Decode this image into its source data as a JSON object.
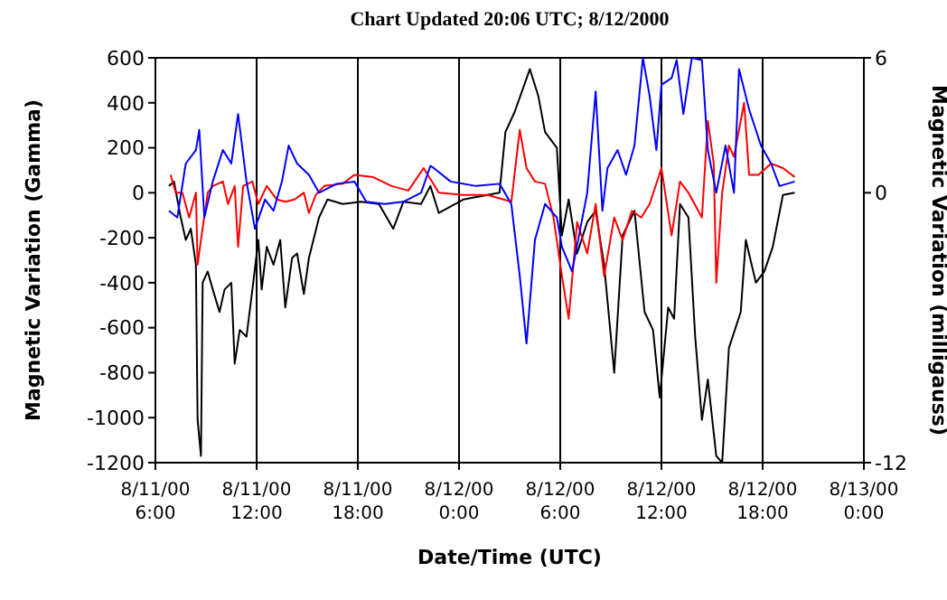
{
  "chart_data": {
    "type": "line",
    "title": "Chart Updated  20:06 UTC;  8/12/2000",
    "xlabel": "Date/Time (UTC)",
    "ylabel": "Magnetic Variation (Gamma)",
    "y2label": "Magnetic Variation (milligauss)",
    "xlim": [
      "2000-08-11T06:00",
      "2000-08-13T00:00"
    ],
    "xticks": [
      {
        "value": "2000-08-11T06:00",
        "label": "8/11/00\n6:00"
      },
      {
        "value": "2000-08-11T12:00",
        "label": "8/11/00\n12:00"
      },
      {
        "value": "2000-08-11T18:00",
        "label": "8/11/00\n18:00"
      },
      {
        "value": "2000-08-12T00:00",
        "label": "8/12/00\n0:00"
      },
      {
        "value": "2000-08-12T06:00",
        "label": "8/12/00\n6:00"
      },
      {
        "value": "2000-08-12T12:00",
        "label": "8/12/00\n12:00"
      },
      {
        "value": "2000-08-12T18:00",
        "label": "8/12/00\n18:00"
      },
      {
        "value": "2000-08-13T00:00",
        "label": "8/13/00\n0:00"
      }
    ],
    "ylim": [
      -1200,
      600
    ],
    "yticks": [
      -1200,
      -1000,
      -800,
      -600,
      -400,
      -200,
      0,
      200,
      400,
      600
    ],
    "y2lim": [
      -12,
      6
    ],
    "y2ticks": [
      -12,
      0,
      6
    ],
    "grid": true,
    "marker": "none",
    "line_style": "solid",
    "series": [
      {
        "color": "#000000",
        "x": [
          "2000-08-11T06:48",
          "2000-08-11T07:06",
          "2000-08-11T07:30",
          "2000-08-11T07:48",
          "2000-08-11T08:06",
          "2000-08-11T08:24",
          "2000-08-11T08:30",
          "2000-08-11T08:42",
          "2000-08-11T08:48",
          "2000-08-11T09:06",
          "2000-08-11T09:24",
          "2000-08-11T09:48",
          "2000-08-11T10:06",
          "2000-08-11T10:30",
          "2000-08-11T10:42",
          "2000-08-11T11:00",
          "2000-08-11T11:24",
          "2000-08-11T11:45",
          "2000-08-11T12:06",
          "2000-08-11T12:18",
          "2000-08-11T12:36",
          "2000-08-11T13:00",
          "2000-08-11T13:24",
          "2000-08-11T13:42",
          "2000-08-11T14:06",
          "2000-08-11T14:24",
          "2000-08-11T14:48",
          "2000-08-11T15:06",
          "2000-08-11T15:42",
          "2000-08-11T16:12",
          "2000-08-11T17:06",
          "2000-08-11T18:12",
          "2000-08-11T19:15",
          "2000-08-11T20:06",
          "2000-08-11T20:42",
          "2000-08-11T21:45",
          "2000-08-11T22:18",
          "2000-08-11T22:48",
          "2000-08-12T00:15",
          "2000-08-12T02:24",
          "2000-08-12T02:45",
          "2000-08-12T03:18",
          "2000-08-12T04:12",
          "2000-08-12T04:42",
          "2000-08-12T05:06",
          "2000-08-12T05:48",
          "2000-08-12T06:06",
          "2000-08-12T06:30",
          "2000-08-12T07:00",
          "2000-08-12T07:36",
          "2000-08-12T08:06",
          "2000-08-12T08:36",
          "2000-08-12T09:12",
          "2000-08-12T09:42",
          "2000-08-12T10:24",
          "2000-08-12T11:00",
          "2000-08-12T11:30",
          "2000-08-12T11:54",
          "2000-08-12T12:24",
          "2000-08-12T12:45",
          "2000-08-12T13:06",
          "2000-08-12T13:36",
          "2000-08-12T14:00",
          "2000-08-12T14:24",
          "2000-08-12T14:45",
          "2000-08-12T15:15",
          "2000-08-12T15:36",
          "2000-08-12T16:00",
          "2000-08-12T16:42",
          "2000-08-12T17:00",
          "2000-08-12T17:36",
          "2000-08-12T18:06",
          "2000-08-12T18:36",
          "2000-08-12T19:12",
          "2000-08-12T19:54"
        ],
        "values": [
          30,
          50,
          -110,
          -210,
          -160,
          -320,
          -1010,
          -1170,
          -400,
          -350,
          -430,
          -530,
          -430,
          -400,
          -760,
          -610,
          -640,
          -430,
          -210,
          -430,
          -240,
          -320,
          -210,
          -510,
          -290,
          -270,
          -450,
          -290,
          -110,
          -30,
          -50,
          -40,
          -50,
          -160,
          -40,
          -50,
          30,
          -90,
          -30,
          0,
          270,
          360,
          550,
          430,
          270,
          200,
          -190,
          -30,
          -270,
          -130,
          -80,
          -320,
          -800,
          -190,
          -80,
          -530,
          -610,
          -910,
          -510,
          -560,
          -50,
          -110,
          -640,
          -1010,
          -830,
          -1170,
          -1200,
          -690,
          -530,
          -210,
          -400,
          -350,
          -240,
          -10,
          0
        ]
      },
      {
        "color": "#ff0000",
        "x": [
          "2000-08-11T06:54",
          "2000-08-11T07:12",
          "2000-08-11T07:36",
          "2000-08-11T08:00",
          "2000-08-11T08:24",
          "2000-08-11T08:30",
          "2000-08-11T08:42",
          "2000-08-11T09:06",
          "2000-08-11T09:24",
          "2000-08-11T10:00",
          "2000-08-11T10:18",
          "2000-08-11T10:42",
          "2000-08-11T10:54",
          "2000-08-11T11:12",
          "2000-08-11T11:45",
          "2000-08-11T12:06",
          "2000-08-11T12:36",
          "2000-08-11T13:12",
          "2000-08-11T13:42",
          "2000-08-11T14:15",
          "2000-08-11T14:48",
          "2000-08-11T15:06",
          "2000-08-11T15:30",
          "2000-08-11T16:00",
          "2000-08-11T17:06",
          "2000-08-11T17:48",
          "2000-08-11T18:54",
          "2000-08-11T20:00",
          "2000-08-11T21:00",
          "2000-08-11T21:54",
          "2000-08-11T22:48",
          "2000-08-12T00:15",
          "2000-08-12T01:42",
          "2000-08-12T03:06",
          "2000-08-12T03:36",
          "2000-08-12T04:00",
          "2000-08-12T04:30",
          "2000-08-12T05:06",
          "2000-08-12T05:36",
          "2000-08-12T06:06",
          "2000-08-12T06:30",
          "2000-08-12T07:00",
          "2000-08-12T07:36",
          "2000-08-12T08:06",
          "2000-08-12T08:36",
          "2000-08-12T09:12",
          "2000-08-12T09:42",
          "2000-08-12T10:15",
          "2000-08-12T10:48",
          "2000-08-12T11:18",
          "2000-08-12T12:00",
          "2000-08-12T12:36",
          "2000-08-12T13:06",
          "2000-08-12T13:36",
          "2000-08-12T14:24",
          "2000-08-12T14:45",
          "2000-08-12T15:06",
          "2000-08-12T15:15",
          "2000-08-12T15:36",
          "2000-08-12T16:00",
          "2000-08-12T16:18",
          "2000-08-12T16:54",
          "2000-08-12T17:12",
          "2000-08-12T17:45",
          "2000-08-12T18:30",
          "2000-08-12T19:12",
          "2000-08-12T19:54"
        ],
        "values": [
          80,
          0,
          0,
          -110,
          0,
          -320,
          -210,
          0,
          30,
          50,
          -50,
          30,
          -240,
          30,
          50,
          -50,
          30,
          -30,
          -40,
          -30,
          0,
          -90,
          -10,
          30,
          40,
          80,
          70,
          30,
          10,
          110,
          0,
          -10,
          -10,
          -40,
          280,
          110,
          50,
          40,
          -110,
          -370,
          -560,
          -130,
          -270,
          -50,
          -370,
          -110,
          -210,
          -80,
          -110,
          -50,
          110,
          -190,
          50,
          0,
          -110,
          320,
          130,
          -400,
          0,
          210,
          160,
          400,
          80,
          80,
          130,
          110,
          70
        ]
      },
      {
        "color": "#0000ff",
        "x": [
          "2000-08-11T06:48",
          "2000-08-11T07:18",
          "2000-08-11T07:48",
          "2000-08-11T08:24",
          "2000-08-11T08:36",
          "2000-08-11T08:54",
          "2000-08-11T09:24",
          "2000-08-11T10:00",
          "2000-08-11T10:30",
          "2000-08-11T10:54",
          "2000-08-11T11:24",
          "2000-08-11T11:54",
          "2000-08-11T12:30",
          "2000-08-11T13:00",
          "2000-08-11T13:30",
          "2000-08-11T13:54",
          "2000-08-11T14:24",
          "2000-08-11T15:06",
          "2000-08-11T15:42",
          "2000-08-11T16:45",
          "2000-08-11T17:48",
          "2000-08-11T18:30",
          "2000-08-11T19:36",
          "2000-08-11T20:42",
          "2000-08-11T21:45",
          "2000-08-11T22:18",
          "2000-08-11T22:30",
          "2000-08-11T23:30",
          "2000-08-12T01:00",
          "2000-08-12T02:24",
          "2000-08-12T03:06",
          "2000-08-12T03:36",
          "2000-08-12T04:00",
          "2000-08-12T04:30",
          "2000-08-12T05:06",
          "2000-08-12T05:48",
          "2000-08-12T06:06",
          "2000-08-12T06:42",
          "2000-08-12T07:36",
          "2000-08-12T08:06",
          "2000-08-12T08:30",
          "2000-08-12T08:48",
          "2000-08-12T09:24",
          "2000-08-12T09:54",
          "2000-08-12T10:24",
          "2000-08-12T10:54",
          "2000-08-12T11:18",
          "2000-08-12T11:42",
          "2000-08-12T12:00",
          "2000-08-12T12:36",
          "2000-08-12T12:54",
          "2000-08-12T13:18",
          "2000-08-12T13:48",
          "2000-08-12T14:24",
          "2000-08-12T14:45",
          "2000-08-12T15:15",
          "2000-08-12T15:48",
          "2000-08-12T16:18",
          "2000-08-12T16:36",
          "2000-08-12T17:12",
          "2000-08-12T17:54",
          "2000-08-12T18:30",
          "2000-08-12T19:00",
          "2000-08-12T19:54"
        ],
        "values": [
          -80,
          -110,
          130,
          190,
          280,
          -110,
          50,
          190,
          130,
          350,
          50,
          -160,
          -30,
          -80,
          50,
          210,
          130,
          80,
          0,
          40,
          50,
          -40,
          -50,
          -40,
          0,
          120,
          110,
          50,
          30,
          40,
          -50,
          -370,
          -670,
          -210,
          -50,
          -110,
          -240,
          -350,
          0,
          450,
          -80,
          110,
          190,
          80,
          210,
          600,
          430,
          190,
          480,
          510,
          590,
          350,
          600,
          590,
          190,
          0,
          210,
          0,
          550,
          370,
          210,
          130,
          30,
          50
        ]
      }
    ]
  }
}
